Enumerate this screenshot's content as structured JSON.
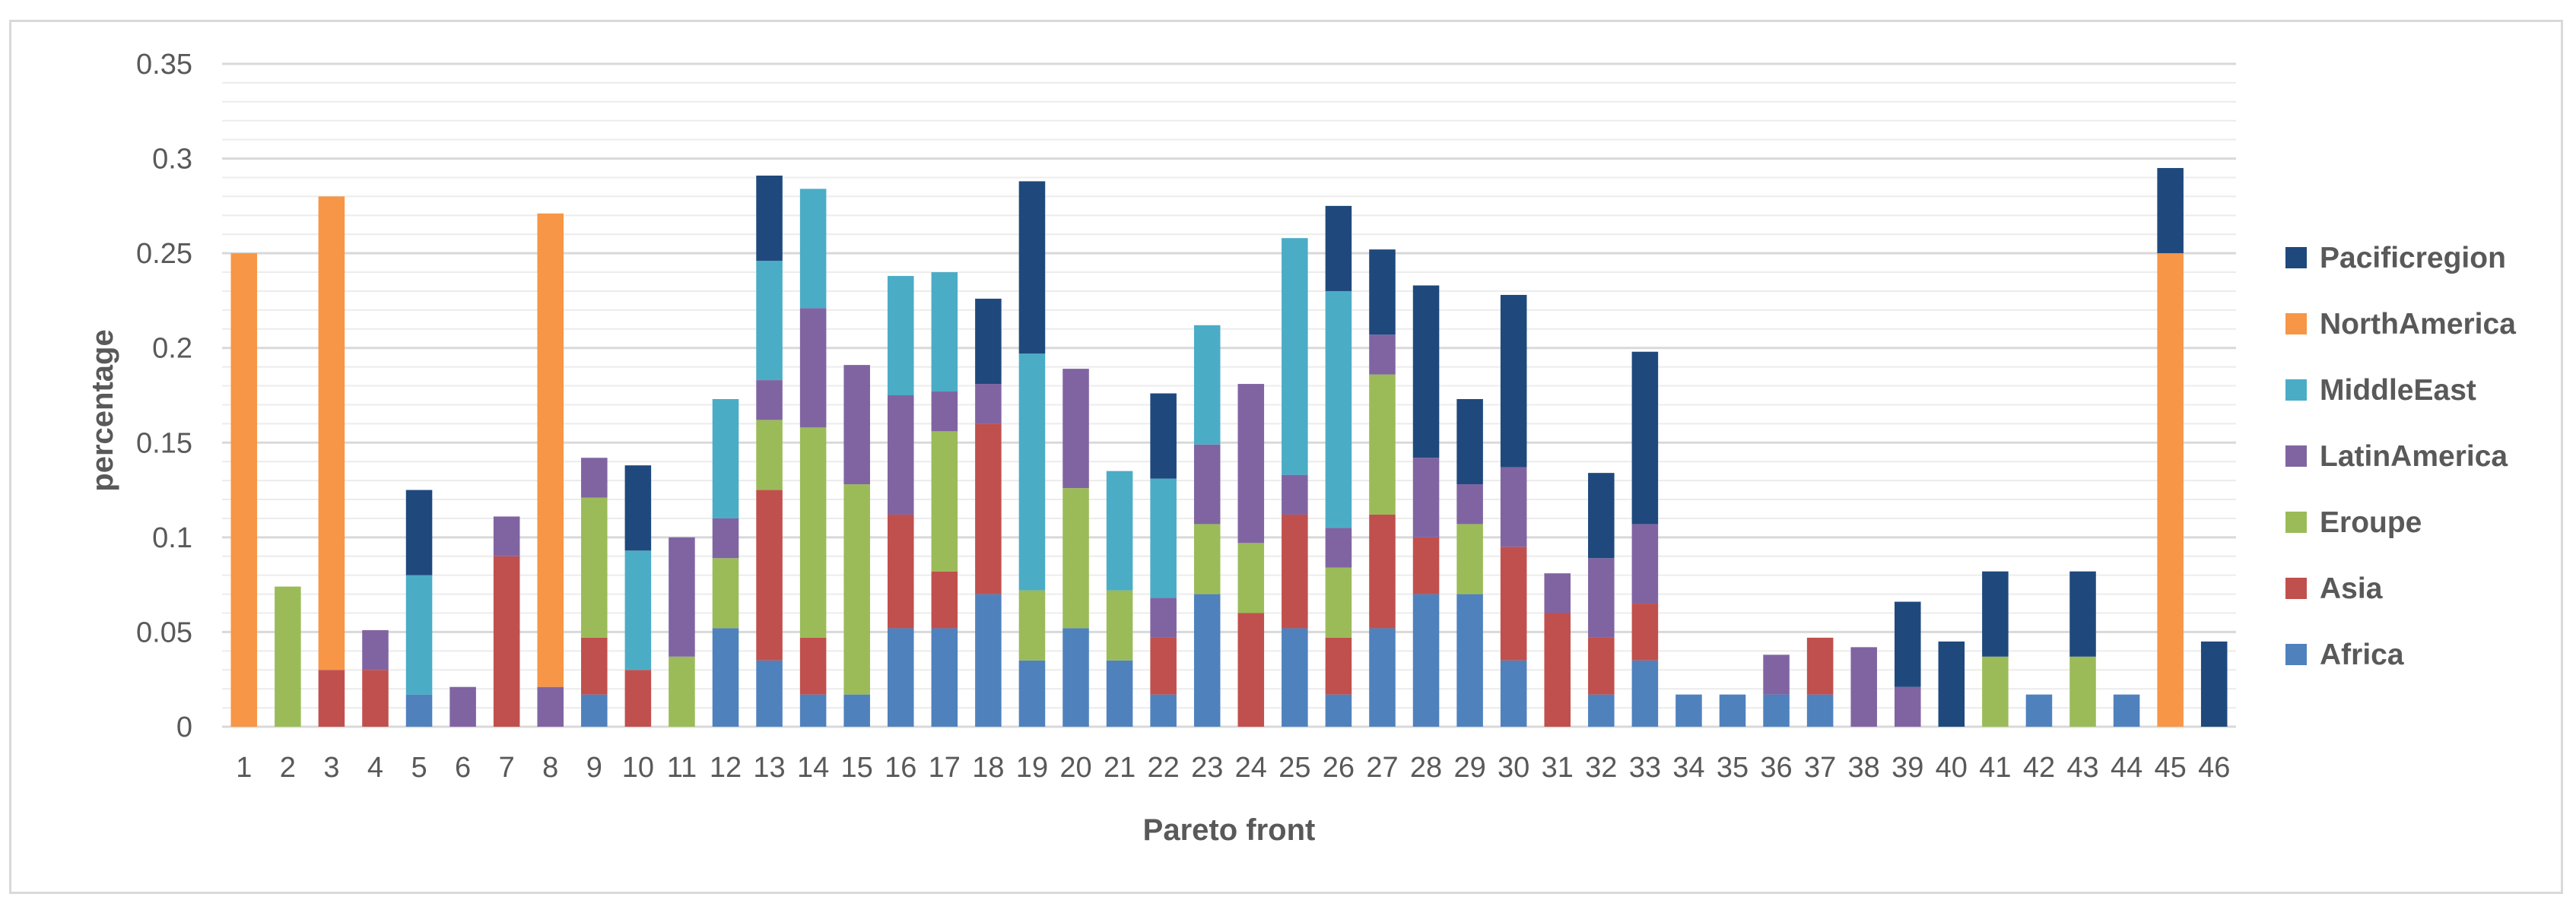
{
  "chart_data": {
    "type": "bar",
    "stacked": true,
    "title": "",
    "xlabel": "Pareto front",
    "ylabel": "percentage",
    "ylim": [
      0,
      0.35
    ],
    "yticks": [
      "0",
      "0.05",
      "0.1",
      "0.15",
      "0.2",
      "0.25",
      "0.3",
      "0.35"
    ],
    "grid": true,
    "legend_position": "right",
    "categories": [
      "1",
      "2",
      "3",
      "4",
      "5",
      "6",
      "7",
      "8",
      "9",
      "10",
      "11",
      "12",
      "13",
      "14",
      "15",
      "16",
      "17",
      "18",
      "19",
      "20",
      "21",
      "22",
      "23",
      "24",
      "25",
      "26",
      "27",
      "28",
      "29",
      "30",
      "31",
      "32",
      "33",
      "34",
      "35",
      "36",
      "37",
      "38",
      "39",
      "40",
      "41",
      "42",
      "43",
      "44",
      "45",
      "46"
    ],
    "series": [
      {
        "name": "Africa",
        "color": "#4f81bd",
        "values": [
          0,
          0,
          0,
          0,
          0.017,
          0,
          0,
          0,
          0.017,
          0,
          0,
          0.052,
          0.035,
          0.017,
          0.017,
          0.052,
          0.052,
          0.07,
          0.035,
          0.052,
          0.035,
          0.017,
          0.07,
          0,
          0.052,
          0.017,
          0.052,
          0.07,
          0.07,
          0.035,
          0,
          0.017,
          0.035,
          0.017,
          0.017,
          0.017,
          0.017,
          0,
          0,
          0,
          0,
          0.017,
          0,
          0.017,
          0,
          0
        ]
      },
      {
        "name": "Asia",
        "color": "#c0504d",
        "values": [
          0,
          0,
          0.03,
          0.03,
          0,
          0,
          0.09,
          0,
          0.03,
          0.03,
          0,
          0,
          0.09,
          0.03,
          0,
          0.06,
          0.03,
          0.09,
          0,
          0,
          0,
          0.03,
          0,
          0.06,
          0.06,
          0.03,
          0.06,
          0.03,
          0,
          0.06,
          0.06,
          0.03,
          0.03,
          0,
          0,
          0,
          0.03,
          0,
          0,
          0,
          0,
          0,
          0,
          0,
          0,
          0
        ]
      },
      {
        "name": "Eroupe",
        "color": "#9bbb59",
        "values": [
          0,
          0.074,
          0,
          0,
          0,
          0,
          0,
          0,
          0.074,
          0,
          0.037,
          0.037,
          0.037,
          0.111,
          0.111,
          0,
          0.074,
          0,
          0.037,
          0.074,
          0.037,
          0,
          0.037,
          0.037,
          0,
          0.037,
          0.074,
          0,
          0.037,
          0,
          0,
          0,
          0,
          0,
          0,
          0,
          0,
          0,
          0,
          0,
          0.037,
          0,
          0.037,
          0,
          0,
          0
        ]
      },
      {
        "name": "LatinAmerica",
        "color": "#8064a2",
        "values": [
          0,
          0,
          0,
          0.021,
          0,
          0.021,
          0.021,
          0.021,
          0.021,
          0,
          0.063,
          0.021,
          0.021,
          0.063,
          0.063,
          0.063,
          0.021,
          0.021,
          0,
          0.063,
          0,
          0.021,
          0.042,
          0.084,
          0.021,
          0.021,
          0.021,
          0.042,
          0.021,
          0.042,
          0.021,
          0.042,
          0.042,
          0,
          0,
          0.021,
          0,
          0.042,
          0.021,
          0,
          0,
          0,
          0,
          0,
          0,
          0
        ]
      },
      {
        "name": "MiddleEast",
        "color": "#4bacc6",
        "values": [
          0,
          0,
          0,
          0,
          0.063,
          0,
          0,
          0,
          0,
          0.063,
          0,
          0.063,
          0.063,
          0.063,
          0,
          0.063,
          0.063,
          0,
          0.125,
          0,
          0.063,
          0.063,
          0.063,
          0,
          0.125,
          0.125,
          0,
          0,
          0,
          0,
          0,
          0,
          0,
          0,
          0,
          0,
          0,
          0,
          0,
          0,
          0,
          0,
          0,
          0,
          0,
          0
        ]
      },
      {
        "name": "NorthAmerica",
        "color": "#f79646",
        "values": [
          0.25,
          0,
          0.25,
          0,
          0,
          0,
          0,
          0.25,
          0,
          0,
          0,
          0,
          0,
          0,
          0,
          0,
          0,
          0,
          0,
          0,
          0,
          0,
          0,
          0,
          0,
          0,
          0,
          0,
          0,
          0,
          0,
          0,
          0,
          0,
          0,
          0,
          0,
          0,
          0,
          0,
          0,
          0,
          0,
          0,
          0.25,
          0
        ]
      },
      {
        "name": "Pacificregion",
        "color": "#1f497d",
        "values": [
          0,
          0,
          0,
          0,
          0.045,
          0,
          0,
          0,
          0,
          0.045,
          0,
          0,
          0.045,
          0,
          0,
          0,
          0,
          0.045,
          0.091,
          0,
          0,
          0.045,
          0,
          0,
          0,
          0.045,
          0.045,
          0.091,
          0.045,
          0.091,
          0,
          0.045,
          0.091,
          0,
          0,
          0,
          0,
          0,
          0.045,
          0.045,
          0.045,
          0,
          0.045,
          0,
          0.045,
          0.045
        ]
      }
    ]
  }
}
